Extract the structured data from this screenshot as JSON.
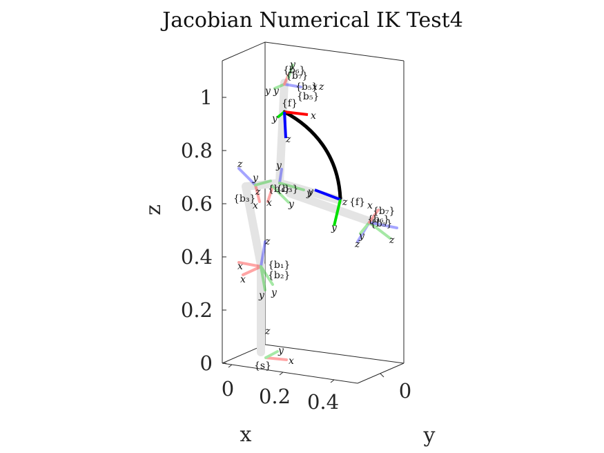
{
  "chart_data": {
    "type": "3d-line",
    "title": "Jacobian Numerical IK Test4",
    "xlabel": "x",
    "ylabel": "y",
    "zlabel": "z",
    "x_ticks": [
      "0",
      "0.2",
      "0.4"
    ],
    "y_ticks": [
      "0"
    ],
    "z_ticks": [
      "0",
      "0.2",
      "0.4",
      "0.6",
      "0.8",
      "1"
    ],
    "zlim": [
      0,
      1.1
    ],
    "axis_labels": [
      "x",
      "y",
      "z"
    ],
    "axis_colors": {
      "x": "#ff0000",
      "y": "#00e000",
      "z": "#0000ff"
    },
    "frames": [
      {
        "name": "{s}",
        "axes": [
          "x",
          "y"
        ]
      },
      {
        "name": "{f}",
        "axes": [
          "x",
          "y",
          "z"
        ]
      },
      {
        "name": "{f}",
        "axes": [
          "y",
          "z",
          "y"
        ]
      },
      {
        "name": "{b₁}",
        "axes": [
          "x",
          "y",
          "z"
        ]
      },
      {
        "name": "{b₂}",
        "axes": [
          "x",
          "y",
          "z"
        ]
      },
      {
        "name": "{b₃}",
        "axes": [
          "x",
          "y",
          "z"
        ]
      },
      {
        "name": "{b₄}",
        "axes": [
          "x",
          "y",
          "z"
        ]
      },
      {
        "name": "{b₅}",
        "axes": [
          "x",
          "y",
          "z"
        ]
      },
      {
        "name": "{b₆}",
        "axes": [
          "x",
          "y",
          "z"
        ]
      },
      {
        "name": "{b₇}",
        "axes": [
          "x",
          "y",
          "z"
        ]
      }
    ],
    "trajectory_color": "#000000",
    "link_color": "#e0e0e0",
    "grid": false
  }
}
